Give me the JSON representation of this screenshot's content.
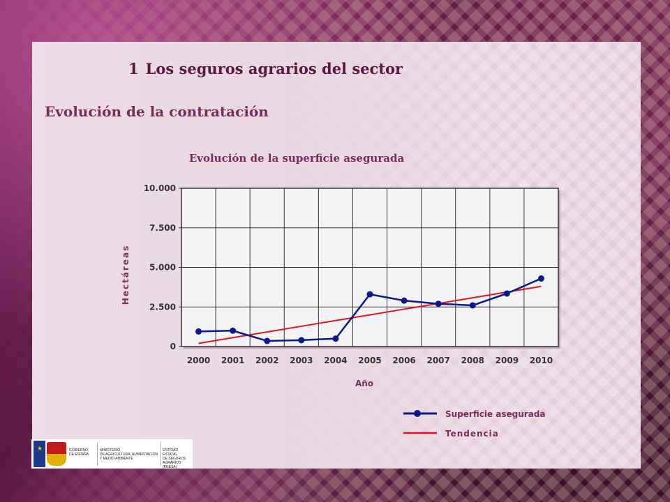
{
  "header": {
    "section_number": "1",
    "title": "Los seguros agrarios del sector",
    "subtitle": "Evolución de la contratación"
  },
  "colors": {
    "title": "#5a1840",
    "subtitle": "#7a2d5a",
    "series": "#0a1a8c",
    "trend": "#e0141e"
  },
  "chart_data": {
    "type": "line",
    "title": "Evolución de la superficie asegurada",
    "xlabel": "Año",
    "ylabel": "Hectáreas",
    "categories": [
      "2000",
      "2001",
      "2002",
      "2003",
      "2004",
      "2005",
      "2006",
      "2007",
      "2008",
      "2009",
      "2010"
    ],
    "ylim": [
      0,
      10000
    ],
    "yticks": [
      0,
      2500,
      5000,
      7500,
      10000
    ],
    "ytick_labels": [
      "0",
      "2.500",
      "5.000",
      "7.500",
      "10.000"
    ],
    "grid": true,
    "legend_position": "bottom-right",
    "series": [
      {
        "name": "Superficie asegurada",
        "style": "line-marker",
        "values": [
          950,
          1000,
          350,
          400,
          500,
          3300,
          2900,
          2700,
          2600,
          3350,
          4300
        ]
      },
      {
        "name": "Tendencia",
        "style": "line",
        "values": [
          200,
          560,
          920,
          1280,
          1640,
          2000,
          2360,
          2720,
          3080,
          3440,
          3800
        ]
      }
    ]
  },
  "footer": {
    "logo_ministry": "GOBIERNO\nDE ESPAÑA",
    "logo_department": "MINISTERIO\nDE AGRICULTURA, ALIMENTACIÓN\nY MEDIO AMBIENTE",
    "logo_entity": "ENTIDAD ESTATAL\nDE SEGUROS\nAGRARIOS (ENESA)"
  }
}
